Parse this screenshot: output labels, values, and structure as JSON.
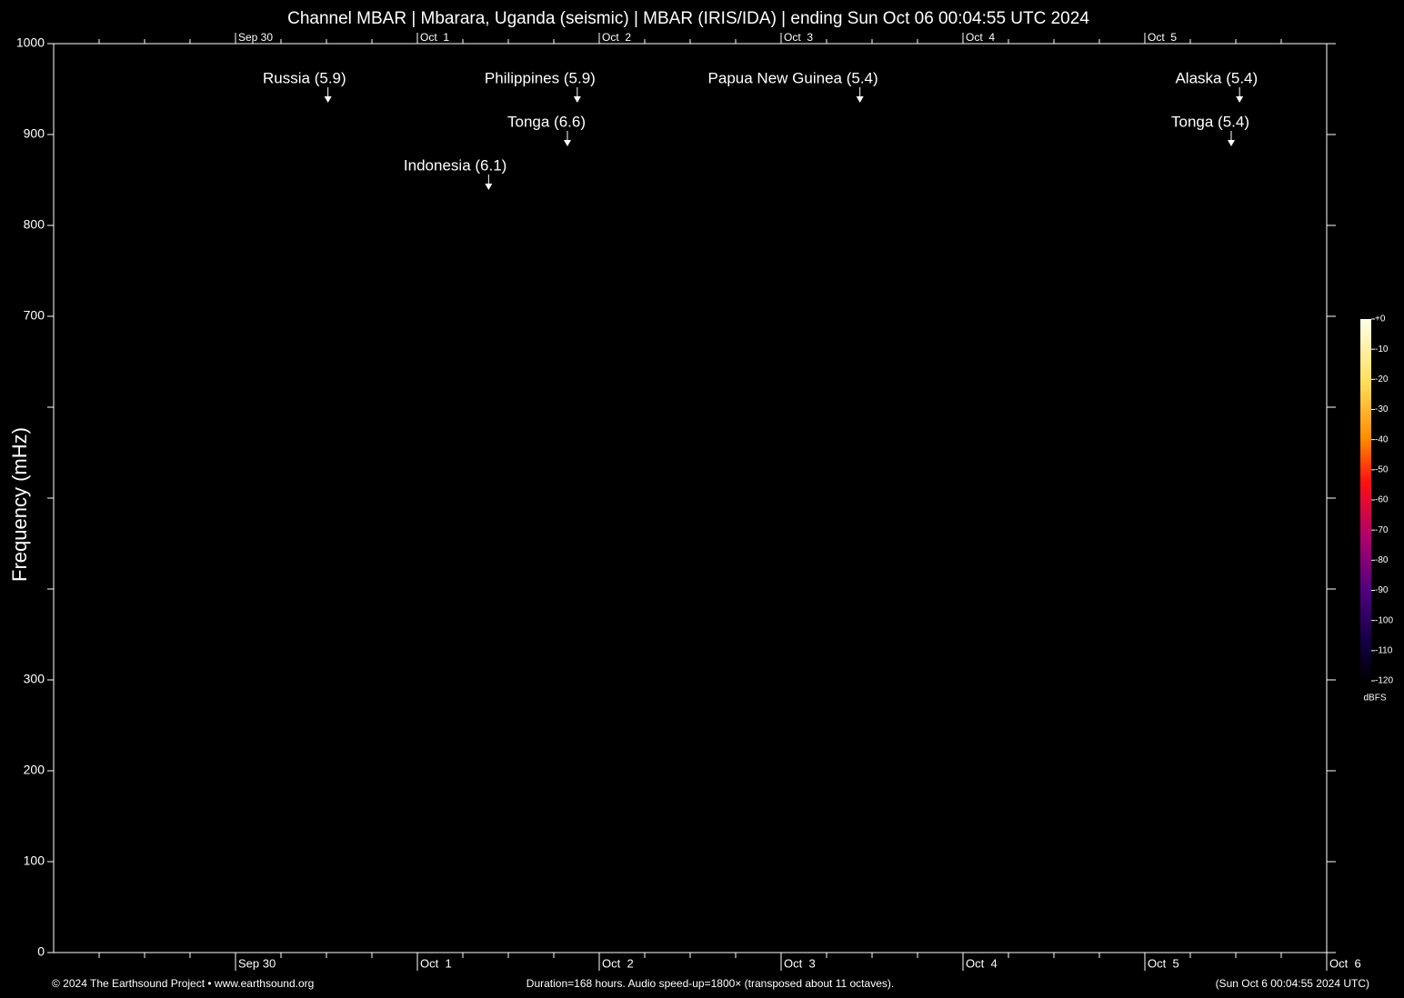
{
  "chart_data": {
    "type": "spectrogram",
    "title": "Channel MBAR | Mbarara, Uganda (seismic) | MBAR (IRIS/IDA) | ending Sun Oct 06 00:04:55 UTC 2024",
    "y_label": "Frequency (mHz)",
    "xlim": [
      0,
      168
    ],
    "xticks": [
      {
        "value": 24,
        "label": "Sep 30"
      },
      {
        "value": 48,
        "label": "Oct  1"
      },
      {
        "value": 72,
        "label": "Oct  2"
      },
      {
        "value": 96,
        "label": "Oct  3"
      },
      {
        "value": 120,
        "label": "Oct  4"
      },
      {
        "value": 144,
        "label": "Oct  5"
      },
      {
        "value": 168,
        "label": "Oct  6"
      }
    ],
    "ylim": [
      0,
      1000
    ],
    "yticks": [
      0,
      100,
      200,
      300,
      700,
      800,
      900,
      1000
    ],
    "yticks_unlabeled": [
      400,
      500,
      600
    ],
    "events": [
      {
        "label": "Russia (5.9)",
        "x": 36.2
      },
      {
        "label": "Philippines (5.9)",
        "x": 69.1
      },
      {
        "label": "Papua New Guinea (5.4)",
        "x": 106.4
      },
      {
        "label": "Alaska (5.4)",
        "x": 156.5
      },
      {
        "label": "Tonga (6.6)",
        "x": 67.8
      },
      {
        "label": "Tonga (5.4)",
        "x": 155.4
      },
      {
        "label": "Indonesia (6.1)",
        "x": 57.4
      }
    ],
    "colorbar": {
      "label": "dBFS",
      "lim": [
        -120,
        0
      ],
      "ticks": [
        {
          "value": 0,
          "label": "+0"
        },
        -10,
        -20,
        -30,
        -40,
        -50,
        -60,
        -70,
        -80,
        -90,
        -100,
        -110,
        -120
      ]
    },
    "footer": {
      "left": "© 2024 The Earthsound Project • www.earthsound.org",
      "center": "Duration=168 hours. Audio speed-up=1800× (transposed about 11 octaves).",
      "right": "(Sun Oct  6 00:04:55 2024 UTC)"
    }
  }
}
